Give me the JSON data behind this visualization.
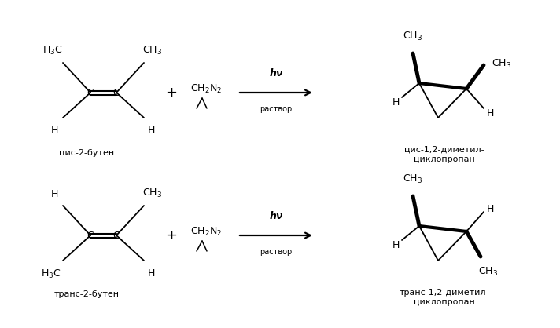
{
  "bg_color": "#ffffff",
  "fig_width": 7.12,
  "fig_height": 4.18,
  "dpi": 100,
  "top_reaction": {
    "reactant_label": "цис-2-бутен",
    "product_label": "цис-1,2-диметил-\nциклопропан",
    "arrow_label_top": "hν",
    "arrow_label_bot": "раствор"
  },
  "bot_reaction": {
    "reactant_label": "транс-2-бутен",
    "product_label": "транс-1,2-диметил-\nциклопропан",
    "arrow_label_top": "hν",
    "arrow_label_bot": "раствор"
  },
  "line_color": "#000000",
  "text_color": "#000000",
  "font_size_main": 9,
  "font_size_label": 8
}
